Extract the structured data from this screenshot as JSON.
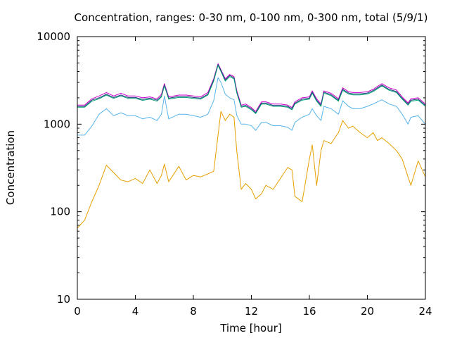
{
  "chart_data": {
    "type": "line",
    "title": "Concentration, ranges: 0-30 nm, 0-100 nm, 0-300 nm, total (5/9/1)",
    "xlabel": "Time [hour]",
    "ylabel": "Concentration",
    "xlim": [
      0,
      24
    ],
    "ylim": [
      10,
      10000
    ],
    "yscale": "log",
    "grid": false,
    "legend": "none",
    "x_ticks": [
      0,
      4,
      8,
      12,
      16,
      20,
      24
    ],
    "y_ticks": [
      10,
      100,
      1000,
      10000
    ],
    "x": [
      0,
      0.5,
      1,
      1.5,
      2,
      2.5,
      3,
      3.5,
      4,
      4.5,
      5,
      5.5,
      5.8,
      6,
      6.3,
      7,
      7.5,
      8,
      8.5,
      9,
      9.4,
      9.7,
      9.9,
      10.2,
      10.5,
      10.8,
      11,
      11.3,
      11.6,
      12,
      12.3,
      12.7,
      13,
      13.5,
      14,
      14.5,
      14.8,
      15,
      15.5,
      16,
      16.2,
      16.5,
      16.8,
      17,
      17.5,
      18,
      18.3,
      18.7,
      19,
      19.5,
      20,
      20.4,
      20.7,
      21,
      21.5,
      22,
      22.4,
      22.8,
      23,
      23.5,
      24
    ],
    "series": [
      {
        "color": "#cc00cc",
        "values": [
          1650,
          1650,
          1950,
          2100,
          2300,
          2100,
          2250,
          2100,
          2100,
          2000,
          2050,
          1950,
          2200,
          2900,
          2050,
          2150,
          2150,
          2100,
          2050,
          2300,
          3300,
          4900,
          4200,
          3300,
          3700,
          3500,
          2400,
          1650,
          1700,
          1550,
          1400,
          1800,
          1800,
          1700,
          1700,
          1650,
          1550,
          1800,
          2000,
          2050,
          2400,
          1950,
          1700,
          2400,
          2250,
          1950,
          2600,
          2350,
          2300,
          2300,
          2350,
          2500,
          2700,
          2900,
          2600,
          2450,
          2050,
          1750,
          1950,
          2000,
          1700
        ]
      },
      {
        "color": "#1b3f7a",
        "values": [
          1600,
          1600,
          1880,
          2000,
          2200,
          2020,
          2150,
          2020,
          2020,
          1920,
          1980,
          1880,
          2100,
          2800,
          1980,
          2070,
          2070,
          2020,
          1980,
          2200,
          3200,
          4800,
          4100,
          3200,
          3600,
          3400,
          2300,
          1600,
          1640,
          1500,
          1350,
          1740,
          1740,
          1640,
          1640,
          1600,
          1500,
          1740,
          1930,
          1980,
          2320,
          1880,
          1640,
          2320,
          2170,
          1880,
          2500,
          2270,
          2220,
          2220,
          2270,
          2420,
          2600,
          2800,
          2500,
          2360,
          1980,
          1690,
          1880,
          1930,
          1640
        ]
      },
      {
        "color": "#009e73",
        "values": [
          1560,
          1560,
          1830,
          1950,
          2150,
          1970,
          2100,
          1970,
          1970,
          1870,
          1930,
          1830,
          2050,
          2750,
          1930,
          2020,
          2020,
          1970,
          1930,
          2150,
          3100,
          4700,
          4000,
          3100,
          3500,
          3300,
          2250,
          1560,
          1600,
          1460,
          1320,
          1700,
          1700,
          1600,
          1600,
          1560,
          1460,
          1700,
          1880,
          1930,
          2260,
          1830,
          1600,
          2260,
          2120,
          1830,
          2440,
          2210,
          2160,
          2160,
          2210,
          2360,
          2540,
          2740,
          2440,
          2300,
          1930,
          1650,
          1830,
          1880,
          1600
        ]
      },
      {
        "color": "#56b4e9",
        "values": [
          750,
          750,
          950,
          1300,
          1500,
          1250,
          1350,
          1250,
          1250,
          1150,
          1200,
          1100,
          1300,
          2100,
          1150,
          1300,
          1300,
          1250,
          1200,
          1300,
          1850,
          3400,
          3000,
          2200,
          2000,
          1900,
          1250,
          1000,
          1000,
          960,
          850,
          1050,
          1050,
          960,
          960,
          920,
          850,
          1050,
          1200,
          1300,
          1500,
          1250,
          1100,
          1600,
          1500,
          1300,
          1850,
          1600,
          1500,
          1500,
          1600,
          1700,
          1800,
          1900,
          1700,
          1600,
          1300,
          1000,
          1200,
          1250,
          1000
        ]
      },
      {
        "color": "#e69f00",
        "values": [
          65,
          80,
          130,
          200,
          340,
          280,
          230,
          220,
          240,
          210,
          300,
          210,
          260,
          350,
          220,
          330,
          230,
          260,
          250,
          270,
          290,
          750,
          1400,
          1100,
          1300,
          1200,
          480,
          180,
          210,
          180,
          140,
          160,
          200,
          180,
          240,
          320,
          300,
          150,
          130,
          400,
          580,
          200,
          500,
          650,
          600,
          800,
          1100,
          900,
          950,
          800,
          700,
          800,
          650,
          700,
          600,
          500,
          400,
          250,
          200,
          380,
          250
        ]
      }
    ]
  }
}
